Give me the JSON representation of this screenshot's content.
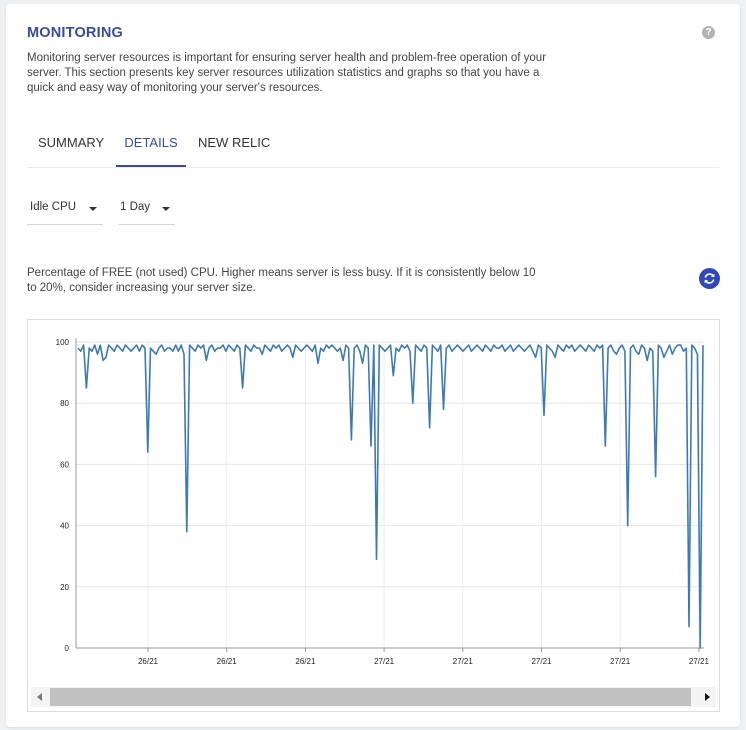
{
  "section": {
    "title": "MONITORING",
    "help_icon": "question-icon",
    "help_text": "?",
    "description": "Monitoring server resources is important for ensuring server health and problem-free operation of your server. This section presents key server resources utilization statistics and graphs so that you have a quick and easy way of monitoring your server's resources."
  },
  "tabs": [
    {
      "label": "SUMMARY",
      "active": false
    },
    {
      "label": "DETAILS",
      "active": true
    },
    {
      "label": "NEW RELIC",
      "active": false
    }
  ],
  "filters": {
    "metric": "Idle CPU",
    "period": "1 Day"
  },
  "chart_description": "Percentage of FREE (not used) CPU. Higher means server is less busy. If it is consistently below 10 to 20%, consider increasing your server size.",
  "refresh_icon": "refresh-icon",
  "colors": {
    "accent": "#3a4a9f",
    "series": "#3d7ab5",
    "refresh": "#2f49b7"
  },
  "chart_data": {
    "type": "line",
    "title": "",
    "xlabel": "",
    "ylabel": "",
    "ylim": [
      0,
      100
    ],
    "y_ticks": [
      0,
      20,
      40,
      60,
      80,
      100
    ],
    "x_tick_labels": [
      "26/21",
      "26/21",
      "26/21",
      "27/21",
      "27/21",
      "27/21",
      "27/21",
      "27/21"
    ],
    "grid": true,
    "series": [
      {
        "values": [
          98,
          97,
          99,
          85,
          98,
          97,
          99,
          96,
          99,
          94,
          95,
          99,
          98,
          97,
          99,
          98,
          97,
          99,
          98,
          97,
          98,
          99,
          97,
          99,
          98,
          64,
          98,
          97,
          96,
          98,
          99,
          97,
          98,
          98,
          97,
          99,
          97,
          99,
          96,
          38,
          99,
          98,
          97,
          99,
          98,
          99,
          94,
          98,
          99,
          97,
          98,
          98,
          99,
          97,
          99,
          98,
          97,
          99,
          98,
          85,
          99,
          98,
          97,
          99,
          98,
          98,
          96,
          99,
          98,
          97,
          99,
          98,
          99,
          97,
          98,
          99,
          98,
          95,
          99,
          98,
          97,
          98,
          99,
          98,
          97,
          99,
          93,
          98,
          97,
          99,
          98,
          99,
          98,
          97,
          98,
          94,
          99,
          98,
          68,
          98,
          99,
          97,
          93,
          99,
          98,
          66,
          99,
          29,
          99,
          98,
          97,
          98,
          99,
          89,
          98,
          97,
          99,
          98,
          99,
          97,
          80,
          99,
          98,
          97,
          99,
          98,
          72,
          99,
          98,
          97,
          99,
          78,
          98,
          99,
          97,
          98,
          99,
          98,
          97,
          98,
          99,
          97,
          98,
          99,
          98,
          97,
          99,
          98,
          97,
          99,
          98,
          98,
          99,
          97,
          98,
          99,
          97,
          98,
          99,
          98,
          97,
          98,
          99,
          97,
          95,
          99,
          98,
          76,
          99,
          98,
          97,
          95,
          99,
          98,
          97,
          99,
          98,
          99,
          97,
          98,
          99,
          98,
          97,
          99,
          98,
          97,
          99,
          98,
          99,
          66,
          98,
          99,
          97,
          96,
          98,
          99,
          97,
          40,
          98,
          99,
          97,
          96,
          99,
          98,
          94,
          98,
          97,
          56,
          99,
          98,
          95,
          97,
          99,
          96,
          98,
          99,
          99,
          97,
          98,
          7,
          99,
          98,
          96,
          0,
          99
        ]
      }
    ]
  }
}
